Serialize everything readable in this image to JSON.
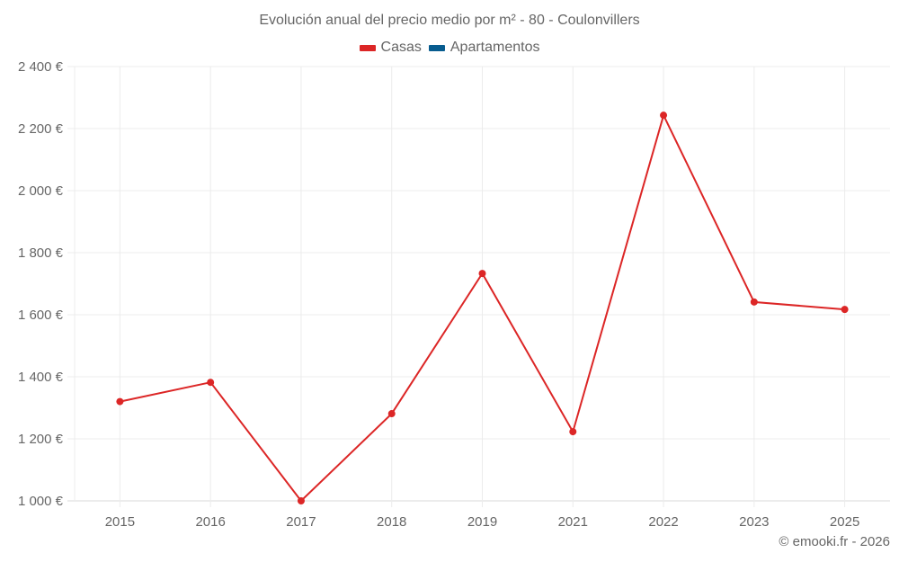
{
  "title": "Evolución anual del precio medio por m² - 80 - Coulonvillers",
  "legend": [
    {
      "label": "Casas",
      "color": "#dc2626"
    },
    {
      "label": "Apartamentos",
      "color": "#075c8f"
    }
  ],
  "credit": "© emooki.fr - 2026",
  "chart_data": {
    "type": "line",
    "title": "Evolución anual del precio medio por m² - 80 - Coulonvillers",
    "xlabel": "",
    "ylabel": "",
    "categories": [
      "2015",
      "2016",
      "2017",
      "2018",
      "2019",
      "2021",
      "2022",
      "2023",
      "2025"
    ],
    "series": [
      {
        "name": "Casas",
        "color": "#dc2626",
        "values": [
          1320,
          1382,
          1000,
          1281,
          1733,
          1223,
          2243,
          1641,
          1617
        ]
      },
      {
        "name": "Apartamentos",
        "color": "#075c8f",
        "values": []
      }
    ],
    "yticks": [
      1000,
      1200,
      1400,
      1600,
      1800,
      2000,
      2200,
      2400
    ],
    "ytick_labels": [
      "1 000 €",
      "1 200 €",
      "1 400 €",
      "1 600 €",
      "1 800 €",
      "2 000 €",
      "2 200 €",
      "2 400 €"
    ],
    "ylim": [
      1000,
      2400
    ],
    "grid": true,
    "legend_position": "top"
  }
}
